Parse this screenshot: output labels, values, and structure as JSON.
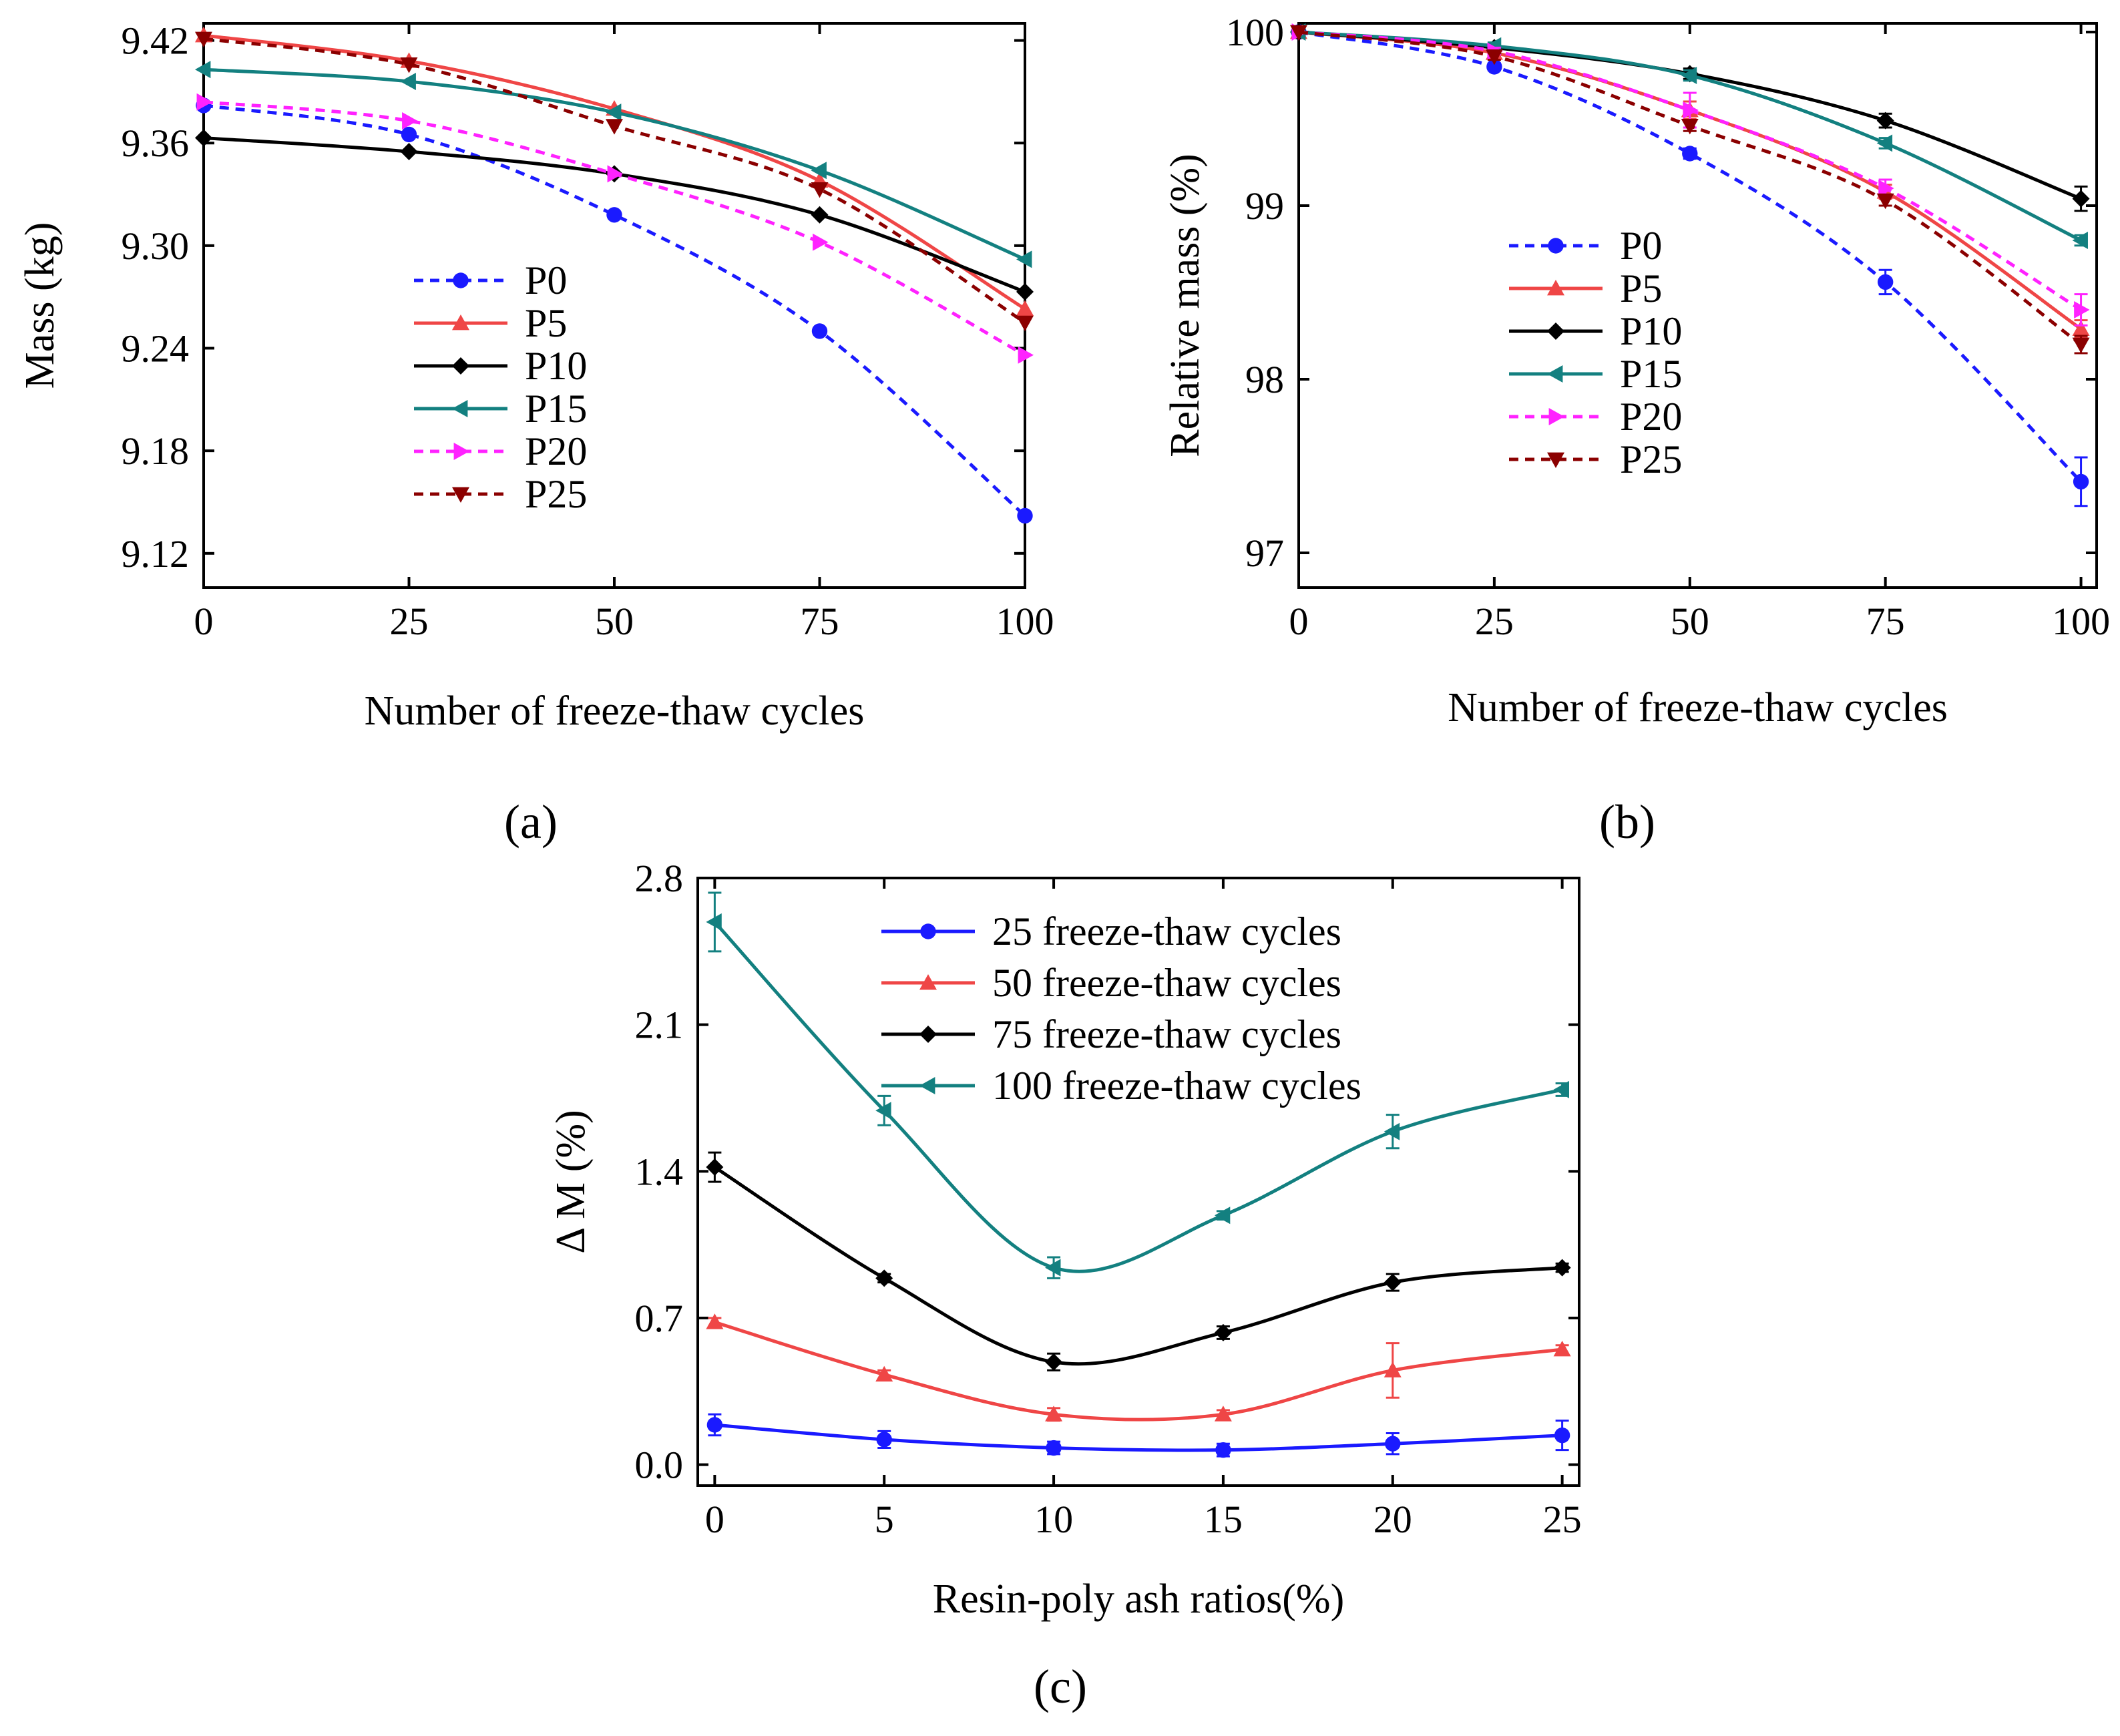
{
  "chart_data": [
    {
      "panel": "(a)",
      "type": "line",
      "xlabel": "Number of freeze-thaw cycles",
      "ylabel": "Mass (kg)",
      "xlim": [
        0,
        100
      ],
      "ylim": [
        9.1,
        9.43
      ],
      "xticks": [
        0,
        25,
        50,
        75,
        100
      ],
      "yticks": [
        9.12,
        9.18,
        9.24,
        9.3,
        9.36,
        9.42
      ],
      "x": [
        0,
        25,
        50,
        75,
        100
      ],
      "legend_position": "center-left",
      "series": [
        {
          "name": "P0",
          "color": "#1a1aff",
          "dash": "dashed",
          "marker": "circle",
          "values": [
            9.382,
            9.365,
            9.318,
            9.25,
            9.142
          ]
        },
        {
          "name": "P5",
          "color": "#ef4646",
          "dash": "solid",
          "marker": "triangle-up",
          "values": [
            9.423,
            9.408,
            9.38,
            9.338,
            9.263
          ]
        },
        {
          "name": "P10",
          "color": "#000000",
          "dash": "solid",
          "marker": "diamond",
          "values": [
            9.363,
            9.355,
            9.342,
            9.318,
            9.273
          ]
        },
        {
          "name": "P15",
          "color": "#138080",
          "dash": "solid",
          "marker": "triangle-left",
          "values": [
            9.403,
            9.396,
            9.378,
            9.344,
            9.292
          ]
        },
        {
          "name": "P20",
          "color": "#ff22ff",
          "dash": "dashed",
          "marker": "triangle-right",
          "values": [
            9.384,
            9.373,
            9.342,
            9.302,
            9.236
          ]
        },
        {
          "name": "P25",
          "color": "#8b0000",
          "dash": "dashed",
          "marker": "triangle-down",
          "values": [
            9.421,
            9.406,
            9.37,
            9.333,
            9.255
          ]
        }
      ]
    },
    {
      "panel": "(b)",
      "type": "line",
      "xlabel": "Number of freeze-thaw cycles",
      "ylabel": "Relative mass (%)",
      "xlim": [
        0,
        102
      ],
      "ylim": [
        96.8,
        100.05
      ],
      "xticks": [
        0,
        25,
        50,
        75,
        100
      ],
      "yticks": [
        97,
        98,
        99,
        100
      ],
      "x": [
        0,
        25,
        50,
        75,
        100
      ],
      "legend_position": "center-left",
      "series": [
        {
          "name": "P0",
          "color": "#1a1aff",
          "dash": "dashed",
          "marker": "circle",
          "values": [
            100,
            99.8,
            99.3,
            98.56,
            97.41
          ],
          "errors": [
            0,
            0.02,
            0.03,
            0.07,
            0.14
          ]
        },
        {
          "name": "P5",
          "color": "#ef4646",
          "dash": "solid",
          "marker": "triangle-up",
          "values": [
            100,
            99.88,
            99.55,
            99.08,
            98.29
          ],
          "errors": [
            0,
            0.02,
            0.05,
            0.04,
            0.05
          ]
        },
        {
          "name": "P10",
          "color": "#000000",
          "dash": "solid",
          "marker": "diamond",
          "values": [
            100,
            99.91,
            99.76,
            99.49,
            99.04
          ],
          "errors": [
            0,
            0.02,
            0.03,
            0.04,
            0.07
          ]
        },
        {
          "name": "P15",
          "color": "#138080",
          "dash": "solid",
          "marker": "triangle-left",
          "values": [
            100,
            99.92,
            99.75,
            99.36,
            98.8
          ],
          "errors": [
            0,
            0.02,
            0.03,
            0.03,
            0.03
          ]
        },
        {
          "name": "P20",
          "color": "#ff22ff",
          "dash": "dashed",
          "marker": "triangle-right",
          "values": [
            100,
            99.89,
            99.55,
            99.1,
            98.4
          ],
          "errors": [
            0,
            0.02,
            0.1,
            0.05,
            0.09
          ]
        },
        {
          "name": "P25",
          "color": "#8b0000",
          "dash": "dashed",
          "marker": "triangle-down",
          "values": [
            100,
            99.86,
            99.46,
            99.03,
            98.2
          ],
          "errors": [
            0,
            0.02,
            0.03,
            0.03,
            0.05
          ]
        }
      ]
    },
    {
      "panel": "(c)",
      "type": "line",
      "xlabel": "Resin-poly ash ratios(%)",
      "ylabel": "Δ M (%)",
      "xlim": [
        -0.5,
        25.5
      ],
      "ylim": [
        -0.1,
        2.8
      ],
      "xticks": [
        0,
        5,
        10,
        15,
        20,
        25
      ],
      "yticks": [
        0.0,
        0.7,
        1.4,
        2.1,
        2.8
      ],
      "x": [
        0,
        5,
        10,
        15,
        20,
        25
      ],
      "legend_position": "top-right",
      "series": [
        {
          "name": "25 freeze-thaw cycles",
          "color": "#1a1aff",
          "dash": "solid",
          "marker": "circle",
          "values": [
            0.19,
            0.12,
            0.08,
            0.07,
            0.1,
            0.14
          ],
          "errors": [
            0.05,
            0.04,
            0.03,
            0.03,
            0.05,
            0.07
          ]
        },
        {
          "name": "50 freeze-thaw cycles",
          "color": "#ef4646",
          "dash": "solid",
          "marker": "triangle-up",
          "values": [
            0.68,
            0.43,
            0.24,
            0.24,
            0.45,
            0.55
          ],
          "errors": [
            0.02,
            0.02,
            0.03,
            0.02,
            0.13,
            0.02
          ]
        },
        {
          "name": "75 freeze-thaw cycles",
          "color": "#000000",
          "dash": "solid",
          "marker": "diamond",
          "values": [
            1.42,
            0.89,
            0.49,
            0.63,
            0.87,
            0.94
          ],
          "errors": [
            0.07,
            0.02,
            0.04,
            0.03,
            0.04,
            0.02
          ]
        },
        {
          "name": "100 freeze-thaw cycles",
          "color": "#138080",
          "dash": "solid",
          "marker": "triangle-left",
          "values": [
            2.59,
            1.69,
            0.94,
            1.19,
            1.59,
            1.79
          ],
          "errors": [
            0.14,
            0.07,
            0.05,
            0.02,
            0.08,
            0.03
          ]
        }
      ]
    }
  ]
}
